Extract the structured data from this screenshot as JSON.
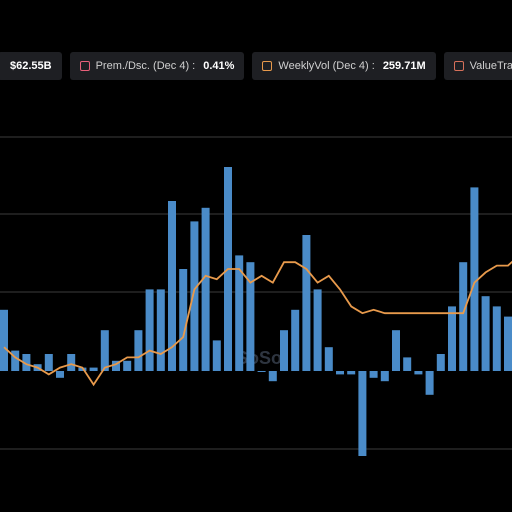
{
  "legend": [
    {
      "label": "",
      "value": "$62.55B",
      "color": "#4a90d9"
    },
    {
      "label": "Prem./Dsc. (Dec 4) :",
      "value": "0.41%",
      "color": "#e8607a"
    },
    {
      "label": "WeeklyVol (Dec 4) :",
      "value": "259.71M",
      "color": "#e89a4c"
    },
    {
      "label": "ValueTra",
      "value": "",
      "color": "#d6705a"
    }
  ],
  "watermark": "SoSo",
  "chart_data": {
    "type": "bar",
    "grid": true,
    "series": [
      {
        "type": "bar",
        "color": "#4a8bc8",
        "values": [
          0.9,
          0.3,
          0.25,
          0.1,
          0.25,
          -0.1,
          0.25,
          0.05,
          0.05,
          0.6,
          0.15,
          0.15,
          0.6,
          1.2,
          1.2,
          2.5,
          1.5,
          2.2,
          2.4,
          0.45,
          3.0,
          1.7,
          1.6,
          0,
          -0.15,
          0.6,
          0.9,
          2.0,
          1.2,
          0.35,
          -0.05,
          -0.05,
          -1.25,
          -0.1,
          -0.15,
          0.6,
          0.2,
          -0.05,
          -0.35,
          0.25,
          0.95,
          1.6,
          2.7,
          1.1,
          0.95,
          0.8,
          2.6,
          0.5
        ]
      },
      {
        "type": "line",
        "color": "#e89a4c",
        "values": [
          0.35,
          0.2,
          0.1,
          0.05,
          -0.05,
          0.05,
          0.1,
          0.05,
          -0.2,
          0.05,
          0.1,
          0.2,
          0.2,
          0.3,
          0.25,
          0.35,
          0.5,
          1.2,
          1.4,
          1.35,
          1.5,
          1.5,
          1.3,
          1.4,
          1.3,
          1.6,
          1.6,
          1.5,
          1.3,
          1.4,
          1.2,
          0.95,
          0.85,
          0.9,
          0.85,
          0.85,
          0.85,
          0.85,
          0.85,
          0.85,
          0.85,
          0.85,
          1.3,
          1.45,
          1.55,
          1.55,
          1.7,
          1.7
        ]
      }
    ]
  }
}
